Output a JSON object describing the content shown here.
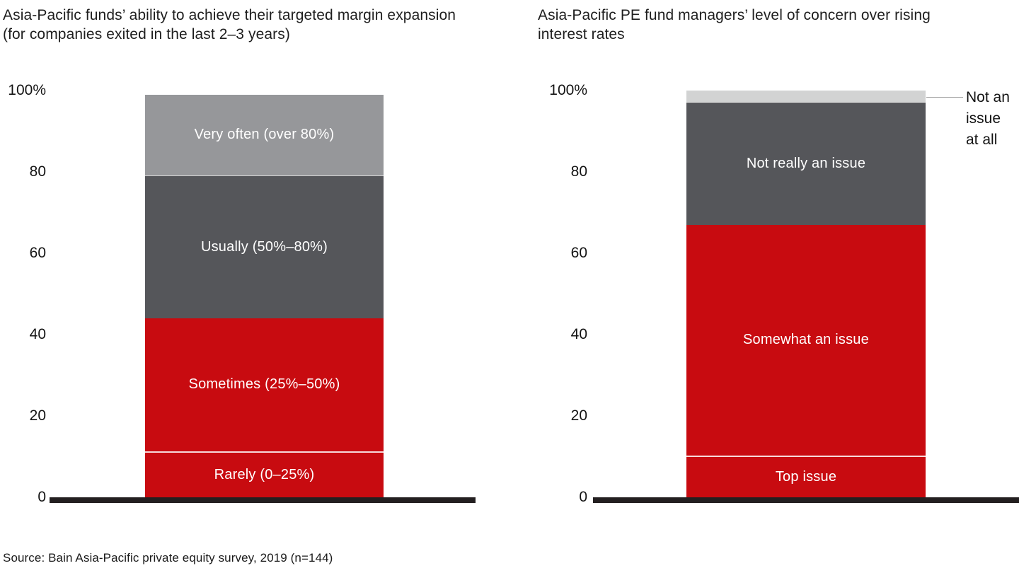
{
  "source_note": "Source: Bain Asia-Pacific private equity survey, 2019 (n=144)",
  "colors": {
    "red": "#c80b10",
    "dark_gray": "#55565a",
    "medium_gray": "#96979a",
    "light_gray": "#d2d3d3",
    "axis_black": "#231f20",
    "leader_line": "#a0a0a0"
  },
  "chart_data": [
    {
      "type": "bar",
      "subtype": "stacked-100-percent-vertical",
      "title": "Asia-Pacific funds’ ability to achieve their targeted margin expansion (for companies exited in the last 2–3 years)",
      "y_axis": {
        "min": 0,
        "max": 100,
        "grid": false,
        "values": [
          0,
          20,
          40,
          60,
          80,
          100
        ],
        "labels": [
          "0",
          "20",
          "40",
          "60",
          "80",
          "100%"
        ]
      },
      "legend": "labels-inside-segments",
      "segments_bottom_to_top": [
        {
          "label": "Rarely (0–25%)",
          "value": 11,
          "color": "#c80b10",
          "text_color": "#ffffff",
          "divider_below": "none"
        },
        {
          "label": "Sometimes (25%–50%)",
          "value": 33,
          "color": "#c80b10",
          "text_color": "#ffffff",
          "divider_below": "strong"
        },
        {
          "label": "Usually (50%–80%)",
          "value": 35,
          "color": "#55565a",
          "text_color": "#ffffff",
          "divider_below": "none"
        },
        {
          "label": "Very often (over 80%)",
          "value": 20,
          "color": "#96979a",
          "text_color": "#ffffff",
          "divider_below": "faint"
        }
      ]
    },
    {
      "type": "bar",
      "subtype": "stacked-100-percent-vertical",
      "title": "Asia-Pacific PE fund managers’ level of concern over rising interest rates",
      "y_axis": {
        "min": 0,
        "max": 100,
        "grid": false,
        "values": [
          0,
          20,
          40,
          60,
          80,
          100
        ],
        "labels": [
          "0",
          "20",
          "40",
          "60",
          "80",
          "100%"
        ]
      },
      "legend": "labels-inside-segments",
      "segments_bottom_to_top": [
        {
          "label": "Top issue",
          "value": 10,
          "color": "#c80b10",
          "text_color": "#ffffff",
          "divider_below": "none"
        },
        {
          "label": "Somewhat an issue",
          "value": 57,
          "color": "#c80b10",
          "text_color": "#ffffff",
          "divider_below": "strong"
        },
        {
          "label": "Not really an issue",
          "value": 30,
          "color": "#55565a",
          "text_color": "#ffffff",
          "divider_below": "none"
        },
        {
          "label": "",
          "value": 3,
          "color": "#d2d3d3",
          "text_color": "#ffffff",
          "divider_below": "faint"
        }
      ],
      "annotation": {
        "text": "Not an issue at all",
        "lines": [
          "Not an",
          "issue",
          "at all"
        ],
        "points_to_segment": "Not an issue at all"
      }
    }
  ]
}
